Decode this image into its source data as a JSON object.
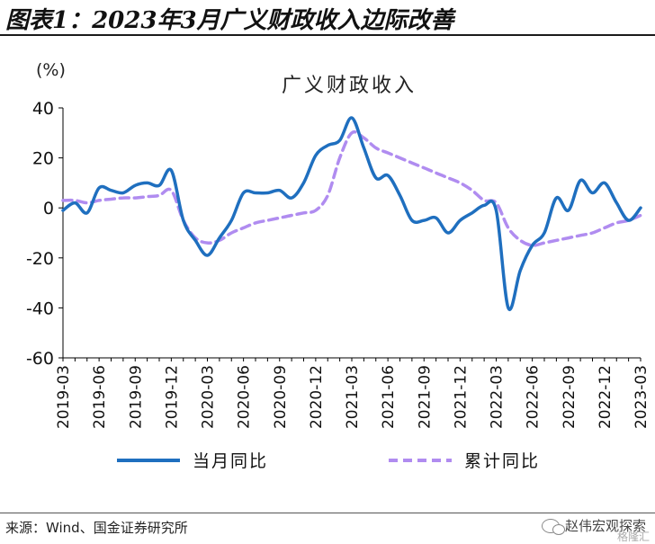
{
  "header": {
    "figure_title": "图表1：2023年3月广义财政收入边际改善"
  },
  "chart_data": {
    "type": "line",
    "title": "广义财政收入",
    "ylabel": "(%)",
    "ylim": [
      -60,
      40
    ],
    "yticks": [
      40,
      20,
      0,
      -20,
      -40,
      -60
    ],
    "x_tick_labels": [
      "2019-03",
      "2019-06",
      "2019-09",
      "2019-12",
      "2020-03",
      "2020-06",
      "2020-09",
      "2020-12",
      "2021-03",
      "2021-06",
      "2021-09",
      "2021-12",
      "2022-03",
      "2022-06",
      "2022-09",
      "2022-12",
      "2023-03"
    ],
    "x": [
      "2019-03",
      "2019-04",
      "2019-05",
      "2019-06",
      "2019-07",
      "2019-08",
      "2019-09",
      "2019-10",
      "2019-11",
      "2019-12",
      "2020-01",
      "2020-02",
      "2020-03",
      "2020-04",
      "2020-05",
      "2020-06",
      "2020-07",
      "2020-08",
      "2020-09",
      "2020-10",
      "2020-11",
      "2020-12",
      "2021-01",
      "2021-02",
      "2021-03",
      "2021-04",
      "2021-05",
      "2021-06",
      "2021-07",
      "2021-08",
      "2021-09",
      "2021-10",
      "2021-11",
      "2021-12",
      "2022-01",
      "2022-02",
      "2022-03",
      "2022-04",
      "2022-05",
      "2022-06",
      "2022-07",
      "2022-08",
      "2022-09",
      "2022-10",
      "2022-11",
      "2022-12",
      "2023-01",
      "2023-02",
      "2023-03"
    ],
    "series": [
      {
        "name": "当月同比",
        "color": "#1f6fbf",
        "style": "solid",
        "values": [
          -1,
          2,
          -2,
          8,
          7,
          6,
          9,
          10,
          9,
          15,
          -5,
          -13,
          -19,
          -12,
          -5,
          6,
          6,
          6,
          7,
          4,
          10,
          21,
          25,
          27,
          36,
          24,
          12,
          13,
          5,
          -5,
          -5,
          -4,
          -10,
          -5,
          -2,
          1,
          -1,
          -40,
          -25,
          -15,
          -10,
          4,
          -1,
          11,
          6,
          10,
          2,
          -5,
          0
        ]
      },
      {
        "name": "累计同比",
        "color": "#b08cf0",
        "style": "dashed",
        "values": [
          3,
          3,
          2,
          3,
          3.5,
          4,
          4,
          4.5,
          5,
          7,
          -5,
          -12,
          -14,
          -13,
          -10,
          -8,
          -6,
          -5,
          -4,
          -3,
          -2,
          -1,
          5,
          20,
          30,
          28,
          24,
          22,
          20,
          18,
          16,
          14,
          12,
          10,
          7,
          3,
          2,
          -8,
          -13,
          -15,
          -14,
          -13,
          -12,
          -11,
          -10,
          -8,
          -6,
          -5,
          -3
        ]
      }
    ],
    "legend_position": "bottom",
    "grid": false
  },
  "footer": {
    "source": "来源：Wind、国金证券研究所",
    "watermark": "赵伟宏观探索",
    "watermark2": "格隆汇"
  }
}
